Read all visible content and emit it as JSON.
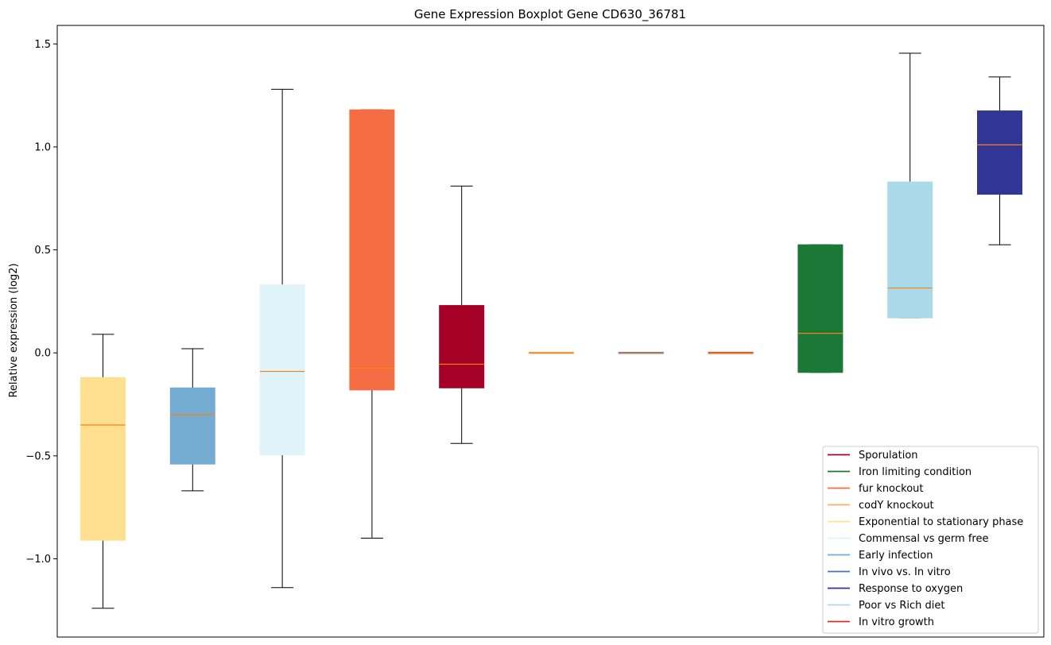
{
  "chart_data": {
    "type": "boxplot",
    "title": "Gene Expression Boxplot Gene CD630_36781",
    "xlabel": "",
    "ylabel": "Relative expression (log2)",
    "ylim": [
      -1.38,
      1.59
    ],
    "yticks": [
      -1.0,
      -0.5,
      0.0,
      0.5,
      1.0,
      1.5
    ],
    "ytick_labels": [
      "−1.0",
      "−0.5",
      "0.0",
      "0.5",
      "1.0",
      "1.5"
    ],
    "grid": false,
    "legend_position": "lower-right",
    "median_color": "#ff7f0e",
    "whisker_color": "#000000",
    "boxes": [
      {
        "whisker_low": -1.24,
        "q1": -0.91,
        "median": -0.35,
        "q3": -0.12,
        "whisker_high": 0.09,
        "color": "#fee090"
      },
      {
        "whisker_low": -0.67,
        "q1": -0.54,
        "median": -0.3,
        "q3": -0.17,
        "whisker_high": 0.02,
        "color": "#74add1"
      },
      {
        "whisker_low": -1.14,
        "q1": -0.495,
        "median": -0.09,
        "q3": 0.33,
        "whisker_high": 1.28,
        "color": "#e0f3f8"
      },
      {
        "whisker_low": -0.9,
        "q1": -0.18,
        "median": -0.075,
        "q3": 1.18,
        "whisker_high": 1.18,
        "color": "#f46d43"
      },
      {
        "whisker_low": -0.44,
        "q1": -0.17,
        "median": -0.055,
        "q3": 0.23,
        "whisker_high": 0.81,
        "color": "#a50026"
      },
      {
        "whisker_low": 0.0,
        "q1": 0.0,
        "median": 0.0,
        "q3": 0.0,
        "whisker_high": 0.0,
        "color": "#fdae61"
      },
      {
        "whisker_low": 0.0,
        "q1": 0.0,
        "median": 0.0,
        "q3": 0.0,
        "whisker_high": 0.0,
        "color": "#4575b4"
      },
      {
        "whisker_low": 0.0,
        "q1": 0.0,
        "median": 0.0,
        "q3": 0.0,
        "whisker_high": 0.0,
        "color": "#d73027"
      },
      {
        "whisker_low": -0.095,
        "q1": -0.095,
        "median": 0.095,
        "q3": 0.525,
        "whisker_high": 0.525,
        "color": "#1b7837"
      },
      {
        "whisker_low": 0.17,
        "q1": 0.17,
        "median": 0.315,
        "q3": 0.83,
        "whisker_high": 1.455,
        "color": "#abd9e9"
      },
      {
        "whisker_low": 0.525,
        "q1": 0.77,
        "median": 1.01,
        "q3": 1.175,
        "whisker_high": 1.34,
        "color": "#313695"
      }
    ],
    "legend": [
      {
        "label": "Sporulation",
        "color": "#a50026"
      },
      {
        "label": "Iron limiting condition",
        "color": "#1b7837"
      },
      {
        "label": "fur knockout",
        "color": "#f46d43"
      },
      {
        "label": "codY knockout",
        "color": "#fdae61"
      },
      {
        "label": "Exponential to stationary phase",
        "color": "#fee090"
      },
      {
        "label": "Commensal vs germ free",
        "color": "#e0f3f8"
      },
      {
        "label": "Early infection",
        "color": "#74add1"
      },
      {
        "label": "In vivo vs. In vitro",
        "color": "#4575b4"
      },
      {
        "label": "Response to oxygen",
        "color": "#313695"
      },
      {
        "label": "Poor vs Rich diet",
        "color": "#abd9e9"
      },
      {
        "label": "In vitro growth",
        "color": "#d73027"
      }
    ]
  }
}
